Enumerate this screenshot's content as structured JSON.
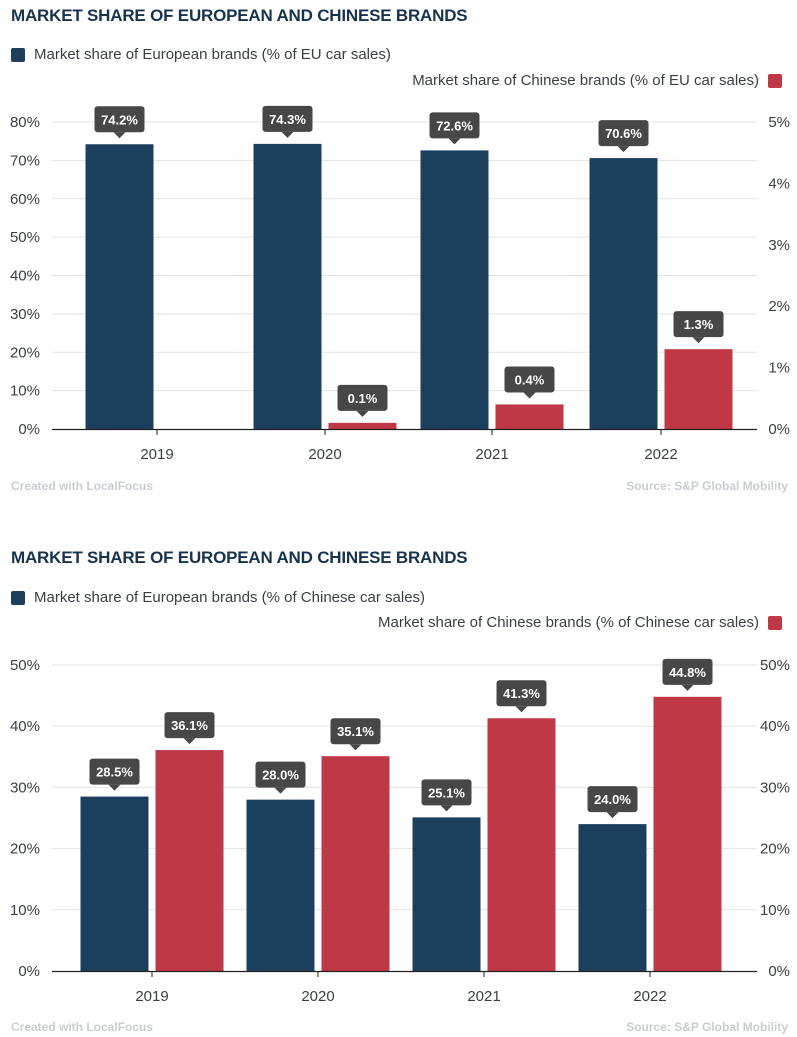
{
  "colors": {
    "european": "#1d3f5e",
    "chinese": "#be3845",
    "label_box": "#474747",
    "grid": "#e3e3e3"
  },
  "charts": [
    {
      "title": "MARKET SHARE OF EUROPEAN AND CHINESE BRANDS",
      "legend_left": "Market share of European brands (% of EU car sales)",
      "legend_right": "Market share of Chinese brands (% of EU car sales)",
      "footer_left": "Created with LocalFocus",
      "footer_right": "Source:  S&P Global Mobility"
    },
    {
      "title": "MARKET SHARE OF EUROPEAN AND CHINESE BRANDS",
      "legend_left": "Market share of European brands (% of Chinese car sales)",
      "legend_right": "Market share of Chinese brands (% of Chinese car sales)",
      "footer_left": "Created with LocalFocus",
      "footer_right": "Source: S&P Global Mobility"
    }
  ],
  "chart_data": [
    {
      "type": "bar",
      "categories": [
        "2019",
        "2020",
        "2021",
        "2022"
      ],
      "series": [
        {
          "name": "Market share of European brands (% of EU car sales)",
          "axis": "left",
          "values": [
            74.2,
            74.3,
            72.6,
            70.6
          ],
          "labels": [
            "74.2%",
            "74.3%",
            "72.6%",
            "70.6%"
          ]
        },
        {
          "name": "Market share of Chinese brands (% of EU car sales)",
          "axis": "right",
          "values": [
            0,
            0.1,
            0.4,
            1.3
          ],
          "labels": [
            "",
            "0.1%",
            "0.4%",
            "1.3%"
          ]
        }
      ],
      "left_axis": {
        "ylim": [
          0,
          80
        ],
        "ticks": [
          0,
          10,
          20,
          30,
          40,
          50,
          60,
          70,
          80
        ],
        "tick_labels": [
          "0%",
          "10%",
          "20%",
          "30%",
          "40%",
          "50%",
          "60%",
          "70%",
          "80%"
        ]
      },
      "right_axis": {
        "ylim": [
          0,
          5
        ],
        "ticks": [
          0,
          1,
          2,
          3,
          4,
          5
        ],
        "tick_labels": [
          "0%",
          "1%",
          "2%",
          "3%",
          "4%",
          "5%"
        ]
      },
      "grid": true,
      "legend": "top"
    },
    {
      "type": "bar",
      "categories": [
        "2019",
        "2020",
        "2021",
        "2022"
      ],
      "series": [
        {
          "name": "Market share of European brands (% of Chinese car sales)",
          "axis": "left",
          "values": [
            28.5,
            28.0,
            25.1,
            24.0
          ],
          "labels": [
            "28.5%",
            "28.0%",
            "25.1%",
            "24.0%"
          ]
        },
        {
          "name": "Market share of Chinese brands (% of Chinese car sales)",
          "axis": "right",
          "values": [
            36.1,
            35.1,
            41.3,
            44.8
          ],
          "labels": [
            "36.1%",
            "35.1%",
            "41.3%",
            "44.8%"
          ]
        }
      ],
      "left_axis": {
        "ylim": [
          0,
          50
        ],
        "ticks": [
          0,
          10,
          20,
          30,
          40,
          50
        ],
        "tick_labels": [
          "0%",
          "10%",
          "20%",
          "30%",
          "40%",
          "50%"
        ]
      },
      "right_axis": {
        "ylim": [
          0,
          50
        ],
        "ticks": [
          0,
          10,
          20,
          30,
          40,
          50
        ],
        "tick_labels": [
          "0%",
          "10%",
          "20%",
          "30%",
          "40%",
          "50%"
        ]
      },
      "grid": true,
      "legend": "top"
    }
  ]
}
